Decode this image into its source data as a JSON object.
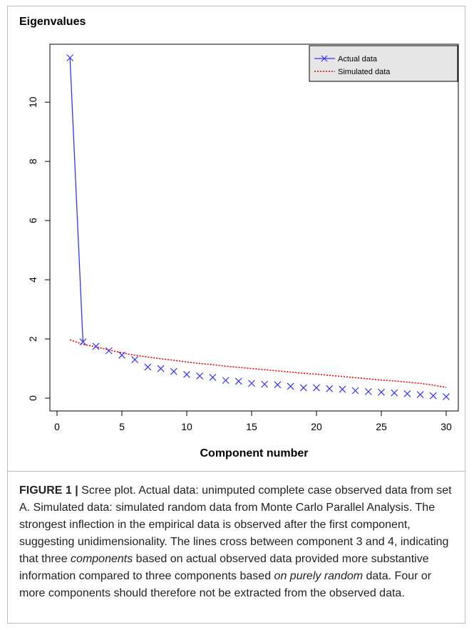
{
  "figure": {
    "caption_label": "FIGURE 1 |",
    "caption_parts": [
      {
        "text": " Scree plot. Actual data: unimputed complete case observed data from set A. Simulated data: simulated random data from Monte Carlo Parallel Analysis. The strongest inflection in the empirical data is observed after the first component, suggesting unidimensionality. The lines cross between component 3 and 4, indicating that three ",
        "italic": false
      },
      {
        "text": "components",
        "italic": true
      },
      {
        "text": " based on actual observed data provided more substantive information compared to three components based ",
        "italic": false
      },
      {
        "text": "on purely random",
        "italic": true
      },
      {
        "text": " data. Four or more components should therefore not be extracted from the observed data.",
        "italic": false
      }
    ]
  },
  "chart_data": {
    "type": "line",
    "title": "Eigenvalues",
    "xlabel": "Component number",
    "ylabel": "",
    "xlim": [
      0,
      30
    ],
    "ylim": [
      0,
      11.5
    ],
    "x_ticks": [
      0,
      5,
      10,
      15,
      20,
      25,
      30
    ],
    "y_ticks": [
      0,
      2,
      4,
      6,
      8,
      10
    ],
    "grid": false,
    "legend_position": "top-right",
    "x": [
      1,
      2,
      3,
      4,
      5,
      6,
      7,
      8,
      9,
      10,
      11,
      12,
      13,
      14,
      15,
      16,
      17,
      18,
      19,
      20,
      21,
      22,
      23,
      24,
      25,
      26,
      27,
      28,
      29,
      30
    ],
    "series": [
      {
        "name": "Actual data",
        "color": "#3333ff",
        "style": "solid-with-x-markers",
        "values": [
          11.5,
          1.9,
          1.75,
          1.6,
          1.45,
          1.3,
          1.05,
          1.0,
          0.9,
          0.8,
          0.75,
          0.7,
          0.6,
          0.57,
          0.5,
          0.47,
          0.45,
          0.4,
          0.35,
          0.35,
          0.32,
          0.3,
          0.25,
          0.22,
          0.2,
          0.18,
          0.15,
          0.12,
          0.08,
          0.05
        ]
      },
      {
        "name": "Simulated data",
        "color": "#ff0000",
        "style": "dotted",
        "values": [
          1.97,
          1.82,
          1.73,
          1.63,
          1.53,
          1.45,
          1.39,
          1.33,
          1.28,
          1.22,
          1.17,
          1.13,
          1.08,
          1.04,
          1.0,
          0.96,
          0.92,
          0.88,
          0.84,
          0.81,
          0.77,
          0.73,
          0.69,
          0.65,
          0.61,
          0.58,
          0.54,
          0.5,
          0.44,
          0.36
        ]
      }
    ]
  }
}
